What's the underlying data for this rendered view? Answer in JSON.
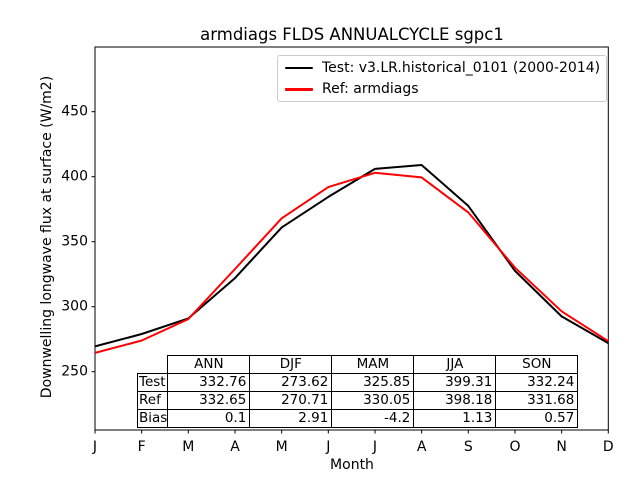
{
  "title": "armdiags FLDS ANNUALCYCLE sgpc1",
  "legend": {
    "position": "upper right",
    "entries": [
      {
        "label": "Test: v3.LR.historical_0101 (2000-2014)",
        "color": "#000000"
      },
      {
        "label": "Ref: armdiags",
        "color": "#ff0000"
      }
    ]
  },
  "axes": {
    "ylabel": "Downwelling longwave flux at surface (W/m2)",
    "xlabel": "Month",
    "yticks": [
      250,
      300,
      350,
      400,
      450
    ],
    "xticklabels": [
      "J",
      "F",
      "M",
      "A",
      "M",
      "J",
      "J",
      "A",
      "S",
      "O",
      "N",
      "D"
    ]
  },
  "chart_data": {
    "type": "line",
    "title": "armdiags FLDS ANNUALCYCLE sgpc1",
    "xlabel": "Month",
    "ylabel": "Downwelling longwave flux at surface (W/m2)",
    "categories": [
      "J",
      "F",
      "M",
      "A",
      "M",
      "J",
      "J",
      "A",
      "S",
      "O",
      "N",
      "D"
    ],
    "series": [
      {
        "name": "Test: v3.LR.historical_0101 (2000-2014)",
        "color": "#000000",
        "values": [
          269.5,
          279,
          291,
          322,
          361,
          384.5,
          406,
          409,
          377.5,
          327.5,
          292.5,
          272
        ]
      },
      {
        "name": "Ref: armdiags",
        "color": "#ff0000",
        "values": [
          264.5,
          274,
          290.5,
          329,
          368,
          392,
          403,
          399.5,
          372.5,
          330,
          296.5,
          273.5
        ]
      }
    ],
    "ylim": [
      205,
      500
    ],
    "yticks": [
      250,
      300,
      350,
      400,
      450
    ],
    "grid": false,
    "legend_position": "upper right"
  },
  "table": {
    "columns": [
      "ANN",
      "DJF",
      "MAM",
      "JJA",
      "SON"
    ],
    "rows": [
      {
        "label": "Test",
        "values": [
          "332.76",
          "273.62",
          "325.85",
          "399.31",
          "332.24"
        ]
      },
      {
        "label": "Ref",
        "values": [
          "332.65",
          "270.71",
          "330.05",
          "398.18",
          "331.68"
        ]
      },
      {
        "label": "Bias",
        "values": [
          "0.1",
          "2.91",
          "-4.2",
          "1.13",
          "0.57"
        ]
      }
    ]
  }
}
